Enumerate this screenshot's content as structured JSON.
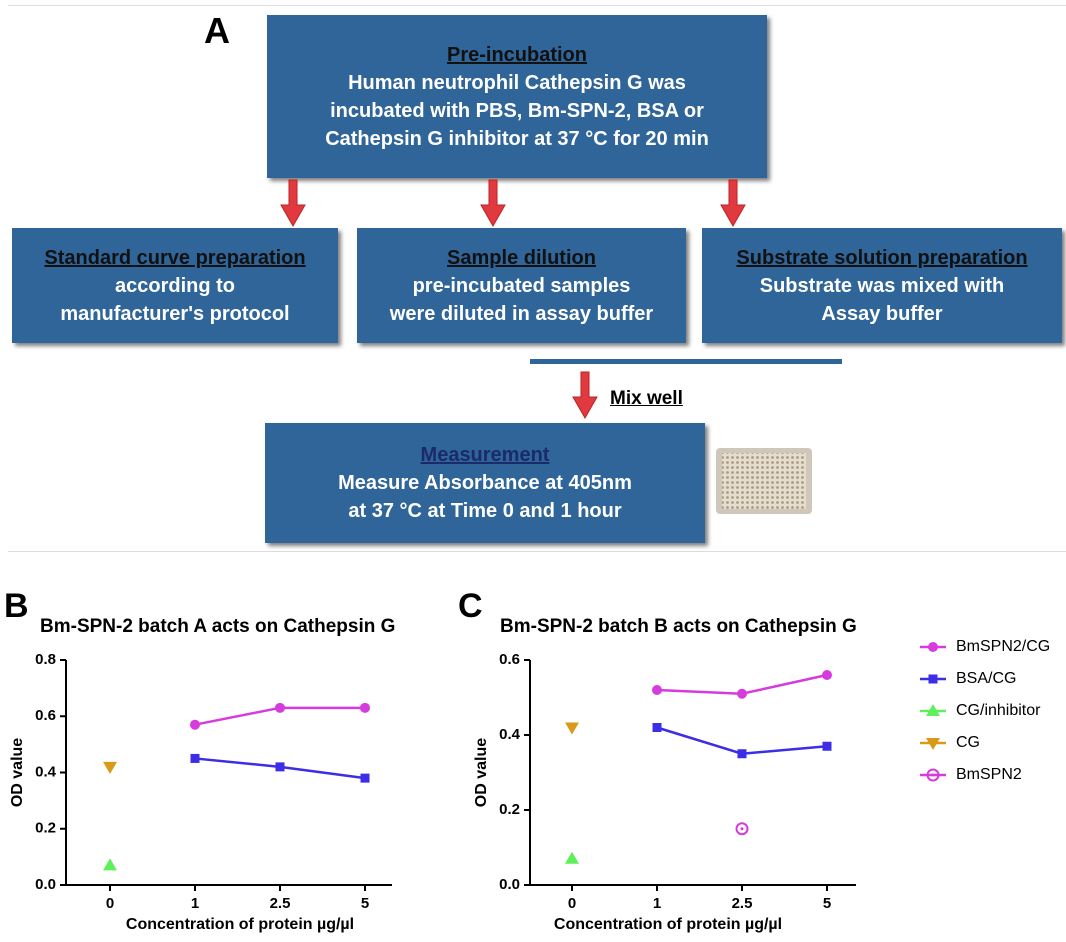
{
  "diagram": {
    "label": "A",
    "boxes": [
      {
        "title": "Pre-incubation",
        "lines": [
          "Human neutrophil Cathepsin G  was",
          "incubated with PBS, Bm-SPN-2, BSA or",
          "Cathepsin G inhibitor at 37 °C for 20 min"
        ]
      },
      {
        "title": "Standard curve preparation",
        "lines": [
          "according to",
          "manufacturer's protocol"
        ]
      },
      {
        "title": "Sample dilution",
        "lines": [
          "pre-incubated samples",
          "were diluted in assay buffer"
        ]
      },
      {
        "title": "Substrate solution preparation",
        "lines": [
          "Substrate was mixed with",
          "Assay buffer"
        ]
      },
      {
        "title": "Measurement",
        "lines": [
          "Measure Absorbance  at 405nm",
          "at 37 °C at Time 0 and 1 hour"
        ]
      }
    ],
    "mix_label": "Mix well"
  },
  "chart_data": [
    {
      "type": "line",
      "panel_label": "B",
      "title": "Bm-SPN-2 batch A acts on Cathepsin G",
      "x_label": "Concentration of protein µg/µl",
      "y_label": "OD value",
      "categories": [
        "0",
        "1",
        "2.5",
        "5"
      ],
      "ylim": [
        0,
        0.8
      ],
      "yticks": [
        {
          "value": 0,
          "label": "0.0"
        },
        0.2,
        0.4,
        0.6,
        0.8
      ],
      "legend": "none",
      "series": [
        {
          "color": "#d63bdd",
          "marker": "circle",
          "values": [
            null,
            0.57,
            0.63,
            0.63
          ]
        },
        {
          "color": "#3c2de6",
          "marker": "square",
          "values": [
            null,
            0.45,
            0.42,
            0.38
          ]
        },
        {
          "color": "#5ef05a",
          "marker": "triangle-up",
          "values": [
            0.07,
            null,
            null,
            null
          ]
        },
        {
          "color": "#d99a1a",
          "marker": "triangle-down",
          "values": [
            0.42,
            null,
            null,
            null
          ]
        }
      ]
    },
    {
      "type": "line",
      "panel_label": "C",
      "title": "Bm-SPN-2 batch B acts on Cathepsin G",
      "x_label": "Concentration of protein µg/µl",
      "y_label": "OD value",
      "categories": [
        "0",
        "1",
        "2.5",
        "5"
      ],
      "ylim": [
        0,
        0.6
      ],
      "yticks": [
        {
          "value": 0,
          "label": "0.0"
        },
        0.2,
        0.4,
        0.6
      ],
      "legend": "right",
      "series": [
        {
          "name": "BmSPN2/CG",
          "color": "#d63bdd",
          "marker": "circle",
          "values": [
            null,
            0.52,
            0.51,
            0.56
          ]
        },
        {
          "name": "BSA/CG",
          "color": "#3c2de6",
          "marker": "square",
          "values": [
            null,
            0.42,
            0.35,
            0.37
          ]
        },
        {
          "name": "CG/inhibitor",
          "color": "#5ef05a",
          "marker": "triangle-up",
          "values": [
            0.07,
            null,
            null,
            null
          ]
        },
        {
          "name": "CG",
          "color": "#d99a1a",
          "marker": "triangle-down",
          "values": [
            0.42,
            null,
            null,
            null
          ]
        },
        {
          "name": "BmSPN2",
          "color": "#d63bdd",
          "marker": "open-circle-dot",
          "values": [
            null,
            null,
            0.15,
            null
          ]
        }
      ]
    }
  ]
}
